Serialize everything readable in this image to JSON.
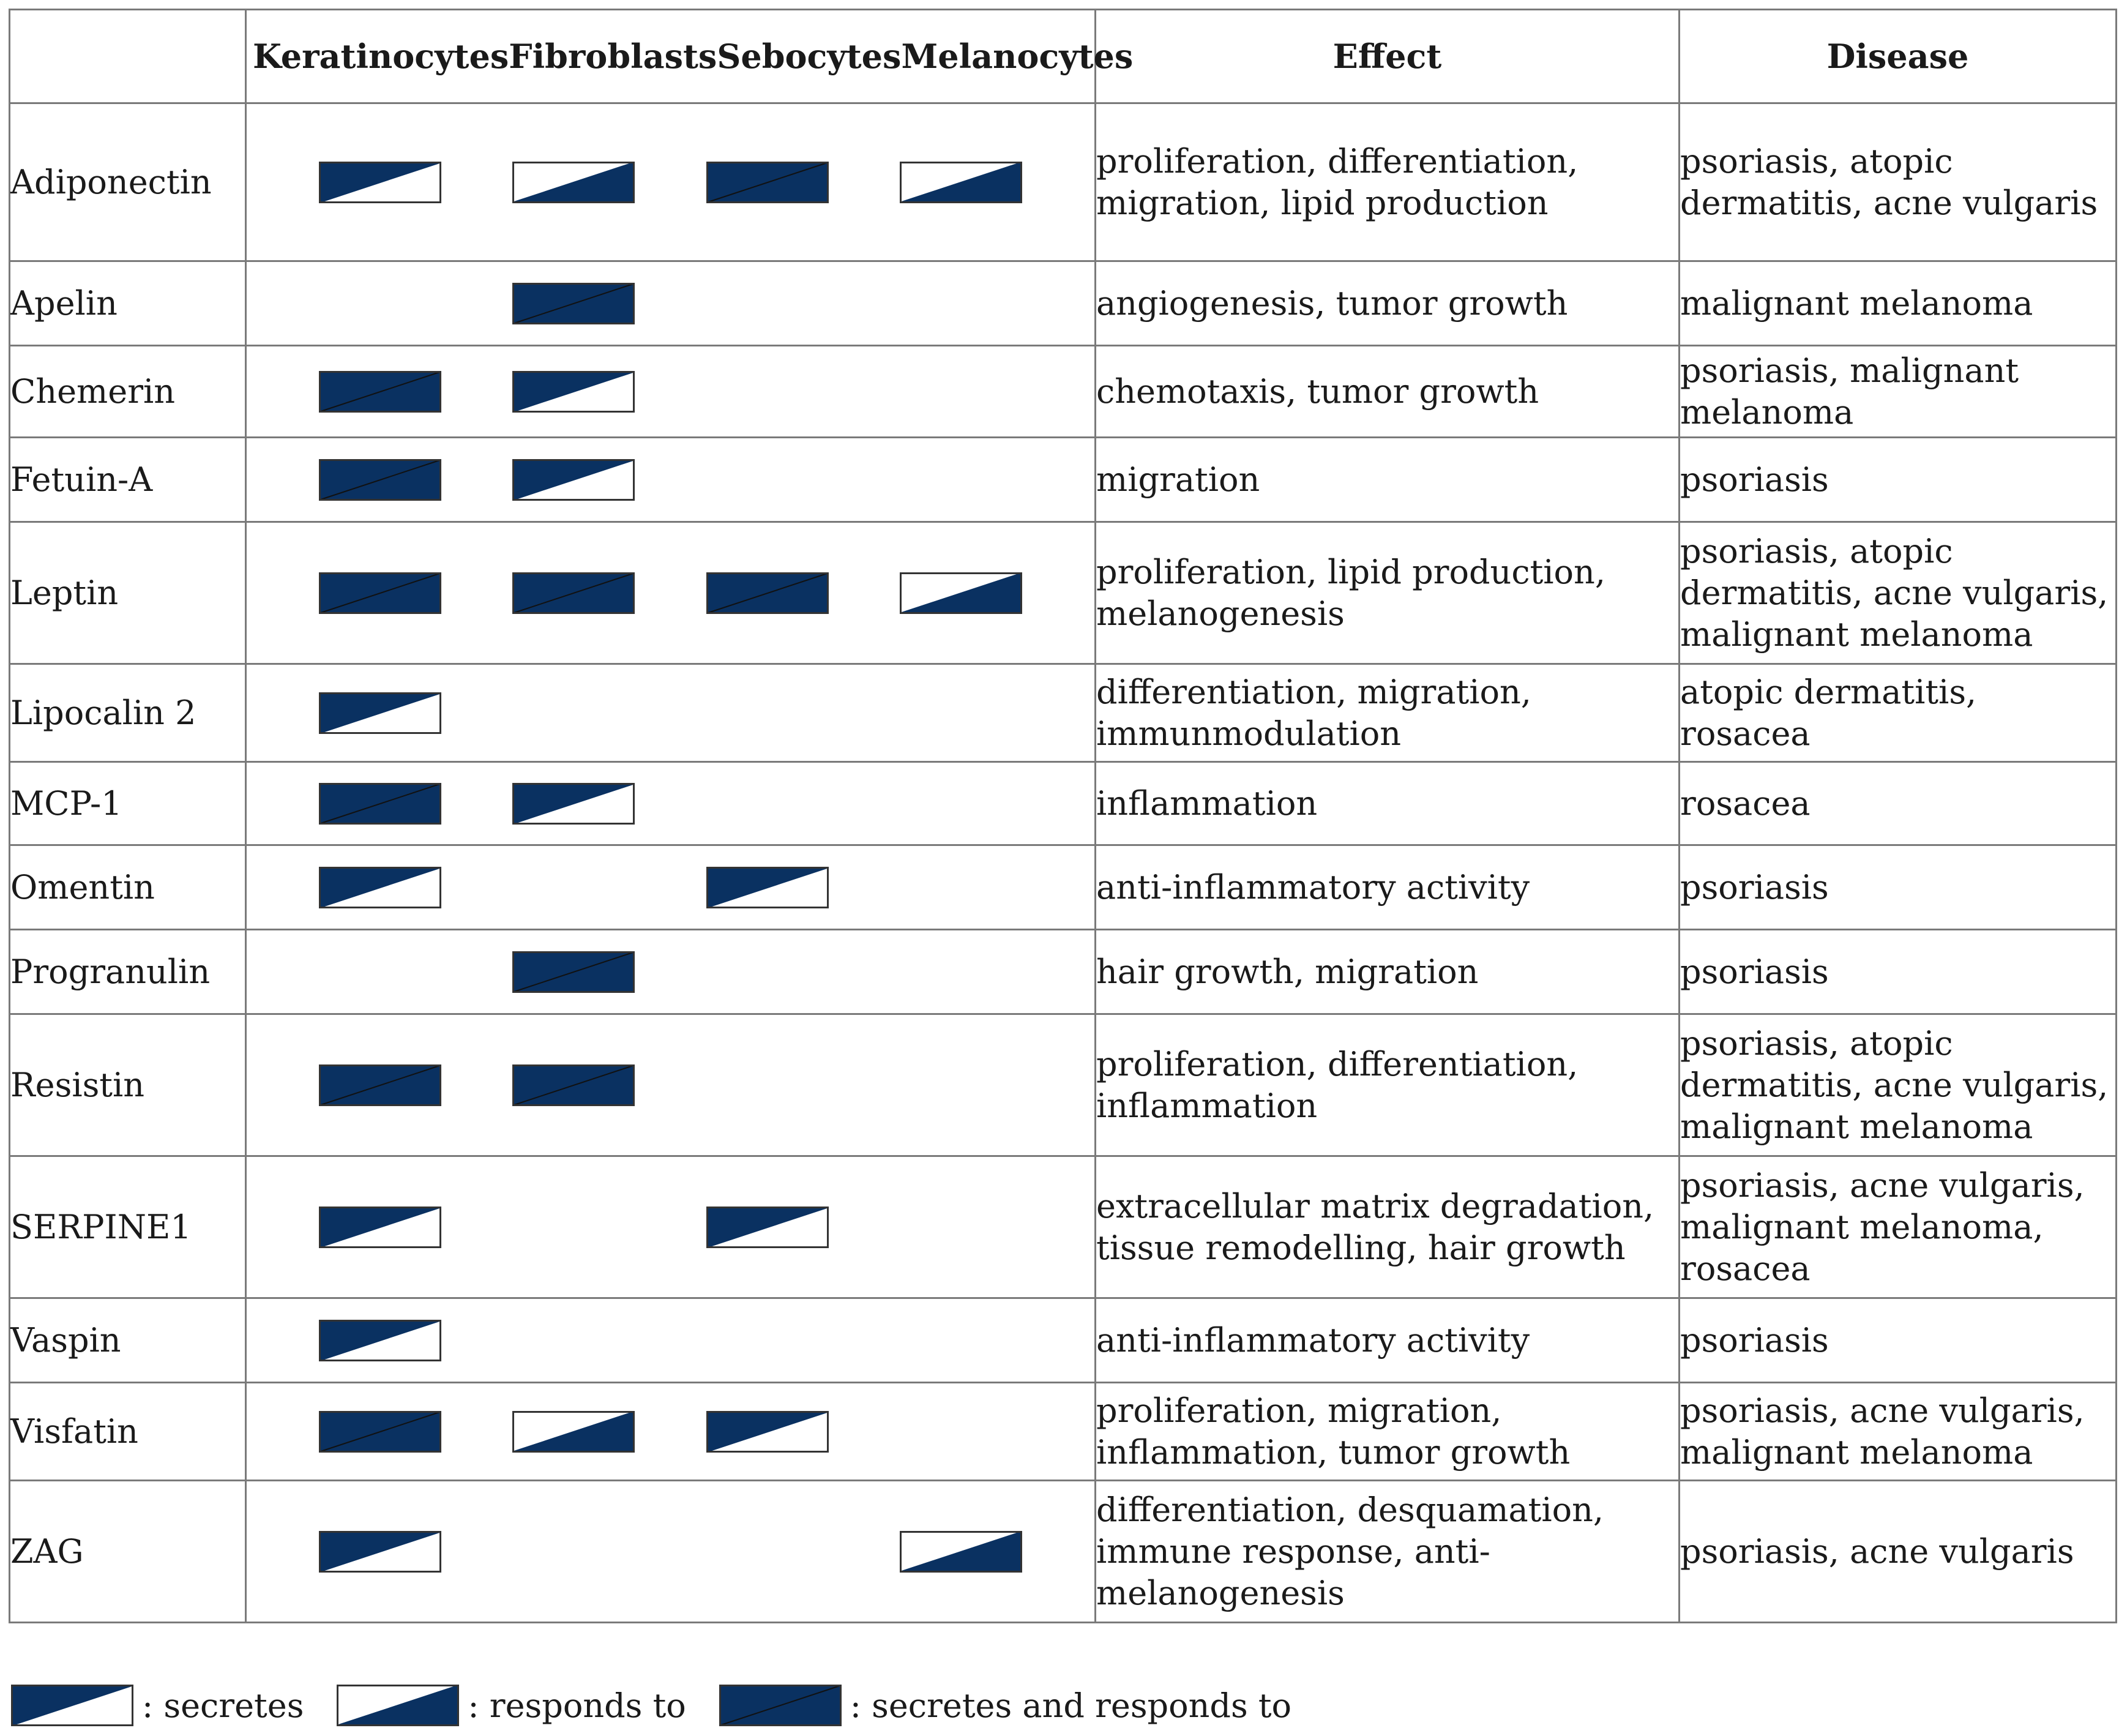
{
  "colors": {
    "fill": "#0a3161",
    "border": "#333333",
    "grid": "#7a7a7a"
  },
  "headers": {
    "cell_types": [
      "Keratinocytes",
      "Fibroblasts",
      "Sebocytes",
      "Melanocytes"
    ],
    "effect": "Effect",
    "disease": "Disease"
  },
  "rows": [
    {
      "name": "Adiponectin",
      "cells": [
        "secretes",
        "responds",
        "both",
        "responds"
      ],
      "effect": "proliferation, differentiation, migration, lipid production",
      "disease": "psoriasis, atopic dermatitis, acne vulgaris"
    },
    {
      "name": "Apelin",
      "cells": [
        "",
        "both",
        "",
        ""
      ],
      "effect": "angiogenesis, tumor growth",
      "disease": "malignant melanoma"
    },
    {
      "name": "Chemerin",
      "cells": [
        "both",
        "secretes",
        "",
        ""
      ],
      "effect": "chemotaxis, tumor growth",
      "disease": "psoriasis, malignant melanoma"
    },
    {
      "name": "Fetuin-A",
      "cells": [
        "both",
        "secretes",
        "",
        ""
      ],
      "effect": "migration",
      "disease": "psoriasis"
    },
    {
      "name": "Leptin",
      "cells": [
        "both",
        "both",
        "both",
        "responds"
      ],
      "effect": "proliferation, lipid production, melanogenesis",
      "disease": "psoriasis, atopic dermatitis, acne vulgaris, malignant melanoma"
    },
    {
      "name": "Lipocalin 2",
      "cells": [
        "secretes",
        "",
        "",
        ""
      ],
      "effect": "differentiation, migration, immunmodulation",
      "disease": "atopic dermatitis, rosacea"
    },
    {
      "name": "MCP-1",
      "cells": [
        "both",
        "secretes",
        "",
        ""
      ],
      "effect": "inflammation",
      "disease": "rosacea"
    },
    {
      "name": "Omentin",
      "cells": [
        "secretes",
        "",
        "secretes",
        ""
      ],
      "effect": "anti-inflammatory activity",
      "disease": "psoriasis"
    },
    {
      "name": "Progranulin",
      "cells": [
        "",
        "both",
        "",
        ""
      ],
      "effect": "hair growth, migration",
      "disease": "psoriasis"
    },
    {
      "name": "Resistin",
      "cells": [
        "both",
        "both",
        "",
        ""
      ],
      "effect": "proliferation, differentiation, inflammation",
      "disease": "psoriasis, atopic dermatitis, acne vulgaris, malignant melanoma"
    },
    {
      "name": "SERPINE1",
      "cells": [
        "secretes",
        "",
        "secretes",
        ""
      ],
      "effect": "extracellular matrix degradation, tissue remodelling, hair growth",
      "disease": "psoriasis, acne vulgaris, malignant melanoma, rosacea"
    },
    {
      "name": "Vaspin",
      "cells": [
        "secretes",
        "",
        "",
        ""
      ],
      "effect": "anti-inflammatory activity",
      "disease": "psoriasis"
    },
    {
      "name": "Visfatin",
      "cells": [
        "both",
        "responds",
        "secretes",
        ""
      ],
      "effect": "proliferation, migration, inflammation, tumor growth",
      "disease": "psoriasis, acne vulgaris, malignant melanoma"
    },
    {
      "name": "ZAG",
      "cells": [
        "secretes",
        "",
        "",
        "responds"
      ],
      "effect": "differentiation, desquamation, immune response, anti-melanogenesis",
      "disease": "psoriasis, acne vulgaris"
    }
  ],
  "legend": [
    {
      "type": "secretes",
      "label": ": secretes"
    },
    {
      "type": "responds",
      "label": ": responds to"
    },
    {
      "type": "both",
      "label": ": secretes and responds to"
    }
  ]
}
